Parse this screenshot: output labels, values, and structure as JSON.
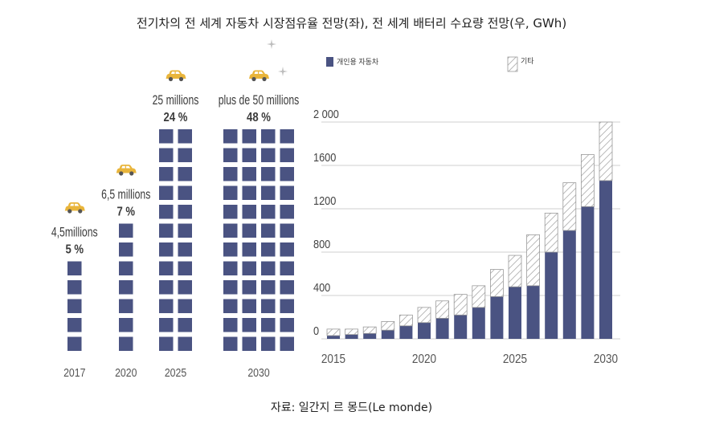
{
  "title": "전기차의 전 세계 자동차 시장점유율 전망(좌), 전 세계 배터리 수요량 전망(우, GWh)",
  "source": "자료: 일간지 르 몽드(Le monde)",
  "colors": {
    "navy": "#4a5382",
    "hatch_stroke": "#9a9a9a",
    "car": "#e9b53b",
    "axis": "#cfcfcf",
    "text": "#3b3b3b"
  },
  "icons": {
    "car": "car-icon",
    "sparkle": "sparkle-icon"
  },
  "chart_data": [
    {
      "type": "bar",
      "categories": [
        "2017",
        "2020",
        "2025",
        "2030"
      ],
      "volume_labels": [
        "4,5millions",
        "6,5 millions",
        "25 millions",
        "plus de 50 millions"
      ],
      "share_labels": [
        "5 %",
        "7 %",
        "24 %",
        "48 %"
      ],
      "values": [
        5,
        7,
        24,
        48
      ],
      "columns": [
        1,
        1,
        2,
        4
      ],
      "rows": [
        5,
        7,
        12,
        12
      ]
    },
    {
      "type": "bar",
      "stacked": true,
      "x": [
        2015,
        2016,
        2017,
        2018,
        2019,
        2020,
        2021,
        2022,
        2023,
        2024,
        2025,
        2026,
        2027,
        2028,
        2029,
        2030
      ],
      "x_tick_labels": [
        "2015",
        "2020",
        "2025",
        "2030"
      ],
      "x_tick_values": [
        2015,
        2020,
        2025,
        2030
      ],
      "y_tick_labels": [
        "0",
        "400",
        "800",
        "1200",
        "1600",
        "2 000"
      ],
      "y_tick_values": [
        0,
        400,
        800,
        1200,
        1600,
        2000
      ],
      "ylim": [
        0,
        2000
      ],
      "series": [
        {
          "name": "개인용 자동차",
          "values": [
            30,
            40,
            50,
            80,
            120,
            150,
            190,
            220,
            290,
            390,
            480,
            490,
            800,
            1000,
            1220,
            1460
          ]
        },
        {
          "name": "기타",
          "values": [
            60,
            50,
            60,
            80,
            100,
            140,
            160,
            190,
            200,
            250,
            290,
            470,
            360,
            440,
            480,
            540
          ]
        }
      ]
    }
  ]
}
